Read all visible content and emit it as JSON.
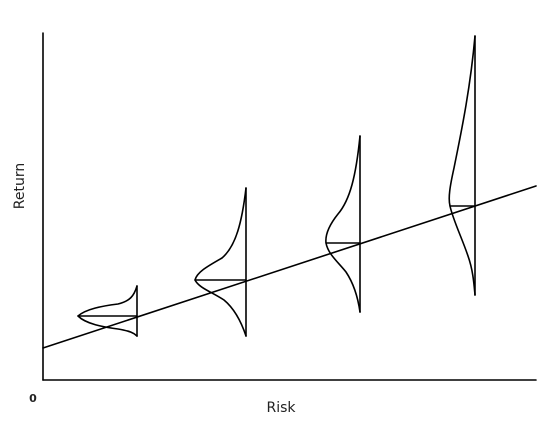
{
  "diagram": {
    "x_axis_label": "Risk",
    "y_axis_label": "Return",
    "origin_label": "0",
    "colors": {
      "ink": "#000000",
      "background": "#ffffff",
      "label_text": "#222222"
    },
    "description_items": [
      {
        "shape": "risk-return-line"
      },
      {
        "shape": "return-distribution",
        "count": 4,
        "spread_increases_with_risk": true
      }
    ]
  }
}
